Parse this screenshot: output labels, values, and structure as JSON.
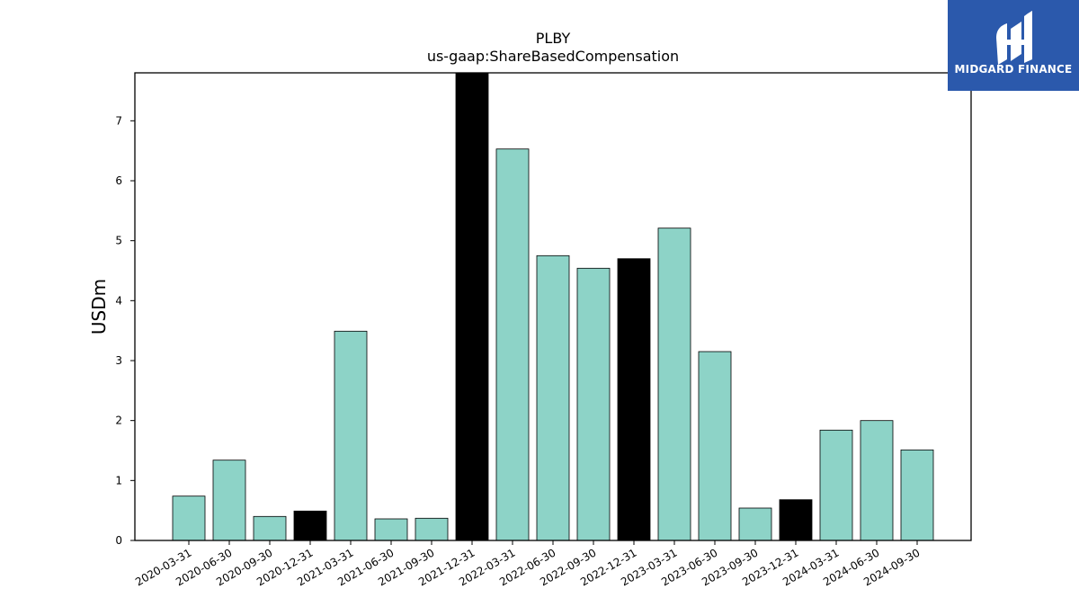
{
  "logo": {
    "text": "MIDGARD FINANCE",
    "background": "#2b59ac"
  },
  "colors": {
    "regular_bar": "#8dd3c7",
    "annual_bar": "#000000",
    "axis": "#000000"
  },
  "chart_data": {
    "type": "bar",
    "title": "PLBY",
    "subtitle": "us-gaap:ShareBasedCompensation",
    "ylabel": "USDm",
    "xlabel": "",
    "ylim": [
      0,
      7.8
    ],
    "yticks": [
      0,
      1,
      2,
      3,
      4,
      5,
      6,
      7
    ],
    "categories": [
      "2020-03-31",
      "2020-06-30",
      "2020-09-30",
      "2020-12-31",
      "2021-03-31",
      "2021-06-30",
      "2021-09-30",
      "2021-12-31",
      "2022-03-31",
      "2022-06-30",
      "2022-09-30",
      "2022-12-31",
      "2023-03-31",
      "2023-06-30",
      "2023-09-30",
      "2023-12-31",
      "2024-03-31",
      "2024-06-30",
      "2024-09-30"
    ],
    "values": [
      0.74,
      1.34,
      0.4,
      0.49,
      3.49,
      0.36,
      0.37,
      7.8,
      6.53,
      4.75,
      4.54,
      4.7,
      5.21,
      3.15,
      0.54,
      0.68,
      1.84,
      2.0,
      1.51
    ],
    "highlight": [
      false,
      false,
      false,
      true,
      false,
      false,
      false,
      true,
      false,
      false,
      false,
      true,
      false,
      false,
      false,
      true,
      false,
      false,
      false
    ],
    "grid": false,
    "legend": "none"
  }
}
